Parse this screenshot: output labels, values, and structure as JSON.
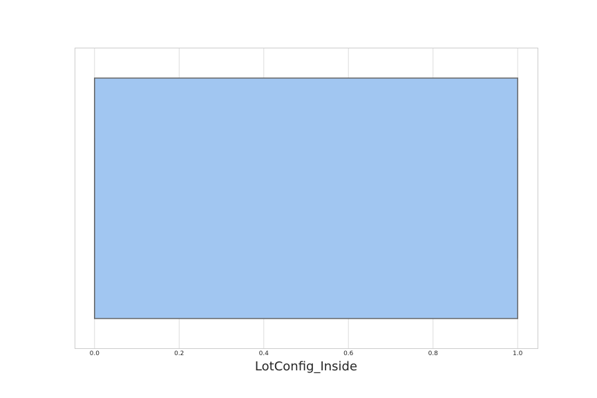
{
  "chart_data": {
    "type": "box",
    "orientation": "horizontal",
    "xlabel": "LotConfig_Inside",
    "ylabel": "",
    "xlim": [
      -0.047,
      1.047
    ],
    "x_ticks": [
      0.0,
      0.2,
      0.4,
      0.6,
      0.8,
      1.0
    ],
    "x_tick_labels": [
      "0.0",
      "0.2",
      "0.4",
      "0.6",
      "0.8",
      "1.0"
    ],
    "grid": true,
    "box": {
      "q1": 0.0,
      "median": 0.0,
      "q3": 1.0,
      "whisker_low": 0.0,
      "whisker_high": 1.0
    },
    "colors": {
      "box_fill": "#a1c6f1",
      "box_edge": "#666666",
      "grid": "#dcdcdc",
      "spine": "#cccccc"
    }
  }
}
